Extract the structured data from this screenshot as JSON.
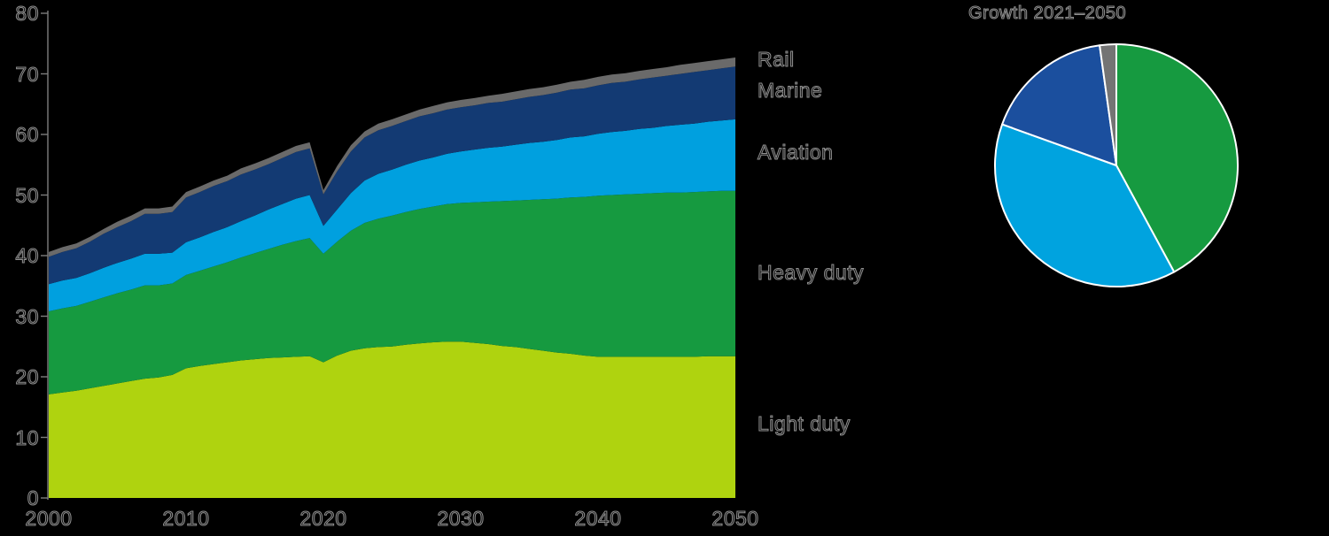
{
  "page": {
    "background_color": "#000000",
    "text_outline_color": "#8f8f8f",
    "axis_color": "#7d7d7d"
  },
  "chart_data": [
    {
      "type": "area",
      "stacked": true,
      "title": "",
      "xlabel": "",
      "ylabel": "",
      "xlim": [
        2000,
        2050
      ],
      "ylim": [
        0,
        80
      ],
      "x_ticks": [
        2000,
        2010,
        2020,
        2030,
        2040,
        2050
      ],
      "y_ticks": [
        0,
        10,
        20,
        30,
        40,
        50,
        60,
        70,
        80
      ],
      "grid": false,
      "legend_position": "labels-right-of-plot",
      "x": [
        2000,
        2001,
        2002,
        2003,
        2004,
        2005,
        2006,
        2007,
        2008,
        2009,
        2010,
        2011,
        2012,
        2013,
        2014,
        2015,
        2016,
        2017,
        2018,
        2019,
        2020,
        2021,
        2022,
        2023,
        2024,
        2025,
        2026,
        2027,
        2028,
        2029,
        2030,
        2031,
        2032,
        2033,
        2034,
        2035,
        2036,
        2037,
        2038,
        2039,
        2040,
        2041,
        2042,
        2043,
        2044,
        2045,
        2046,
        2047,
        2048,
        2049,
        2050
      ],
      "series": [
        {
          "name": "Light duty",
          "color": "#afd30f",
          "values": [
            17.1,
            17.4,
            17.7,
            18.1,
            18.5,
            18.9,
            19.3,
            19.7,
            19.9,
            20.3,
            21.4,
            21.8,
            22.1,
            22.4,
            22.7,
            22.9,
            23.1,
            23.2,
            23.3,
            23.4,
            22.4,
            23.5,
            24.3,
            24.7,
            24.9,
            25.0,
            25.3,
            25.5,
            25.7,
            25.8,
            25.8,
            25.6,
            25.4,
            25.1,
            24.9,
            24.6,
            24.3,
            24.0,
            23.8,
            23.5,
            23.3,
            23.3,
            23.3,
            23.3,
            23.3,
            23.3,
            23.3,
            23.3,
            23.4,
            23.4,
            23.4
          ]
        },
        {
          "name": "Heavy duty",
          "color": "#169a40",
          "values": [
            13.7,
            13.9,
            14.0,
            14.3,
            14.6,
            14.9,
            15.1,
            15.4,
            15.2,
            15.1,
            15.4,
            15.7,
            16.1,
            16.5,
            17.0,
            17.5,
            18.0,
            18.6,
            19.1,
            19.5,
            17.9,
            18.8,
            19.8,
            20.7,
            21.2,
            21.6,
            21.9,
            22.2,
            22.4,
            22.7,
            22.9,
            23.2,
            23.5,
            23.9,
            24.2,
            24.6,
            25.0,
            25.4,
            25.8,
            26.2,
            26.6,
            26.7,
            26.8,
            26.9,
            27.0,
            27.1,
            27.1,
            27.2,
            27.2,
            27.3,
            27.3
          ]
        },
        {
          "name": "Aviation",
          "color": "#00a0df",
          "values": [
            4.5,
            4.6,
            4.6,
            4.7,
            4.9,
            5.0,
            5.1,
            5.2,
            5.2,
            5.1,
            5.4,
            5.5,
            5.7,
            5.8,
            6.0,
            6.2,
            6.5,
            6.7,
            7.0,
            7.1,
            4.6,
            5.3,
            6.2,
            7.0,
            7.4,
            7.6,
            7.8,
            8.0,
            8.1,
            8.3,
            8.5,
            8.7,
            8.9,
            9.0,
            9.2,
            9.4,
            9.5,
            9.7,
            9.9,
            10.0,
            10.2,
            10.4,
            10.5,
            10.7,
            10.8,
            11.0,
            11.2,
            11.3,
            11.5,
            11.6,
            11.8
          ]
        },
        {
          "name": "Marine",
          "color": "#133a73",
          "values": [
            4.5,
            4.7,
            4.9,
            5.2,
            5.6,
            5.9,
            6.2,
            6.6,
            6.6,
            6.7,
            7.4,
            7.5,
            7.6,
            7.6,
            7.7,
            7.6,
            7.5,
            7.6,
            7.7,
            7.7,
            5.2,
            6.3,
            6.9,
            7.1,
            7.2,
            7.2,
            7.2,
            7.3,
            7.3,
            7.3,
            7.3,
            7.3,
            7.4,
            7.4,
            7.5,
            7.6,
            7.7,
            7.8,
            7.9,
            7.9,
            8.0,
            8.1,
            8.1,
            8.2,
            8.3,
            8.3,
            8.4,
            8.5,
            8.5,
            8.6,
            8.7
          ]
        },
        {
          "name": "Rail",
          "color": "#6a6a6a",
          "values": [
            0.8,
            0.8,
            0.8,
            0.8,
            0.8,
            0.9,
            0.9,
            0.9,
            0.9,
            0.9,
            0.9,
            0.9,
            0.9,
            0.9,
            1.0,
            1.0,
            1.0,
            1.0,
            1.0,
            1.0,
            0.7,
            0.9,
            1.0,
            1.0,
            1.1,
            1.1,
            1.1,
            1.1,
            1.2,
            1.2,
            1.2,
            1.2,
            1.2,
            1.3,
            1.3,
            1.3,
            1.3,
            1.3,
            1.3,
            1.4,
            1.4,
            1.4,
            1.4,
            1.4,
            1.4,
            1.4,
            1.5,
            1.5,
            1.5,
            1.5,
            1.5
          ]
        }
      ]
    },
    {
      "type": "pie",
      "title": "Growth 2021–2050",
      "labels": [
        "Heavy duty",
        "Aviation",
        "Marine",
        "Rail"
      ],
      "values": [
        42.1,
        38.4,
        17.3,
        2.2
      ],
      "colors": [
        "#169a40",
        "#00a3df",
        "#1b4f9e",
        "#747474"
      ],
      "start_angle_deg": 0,
      "direction": "clockwise",
      "separator_color": "#ffffff"
    }
  ]
}
